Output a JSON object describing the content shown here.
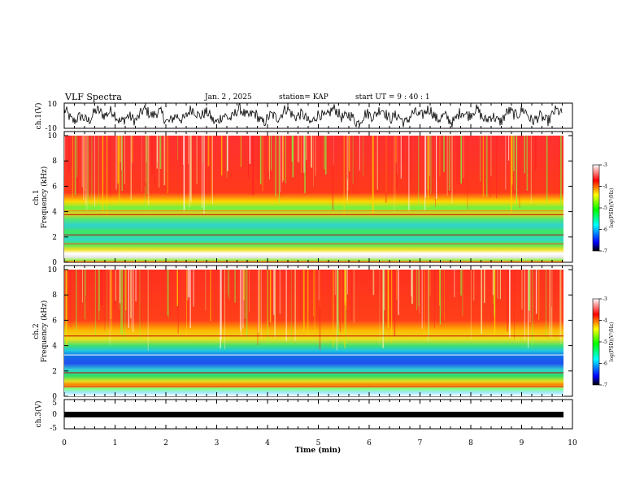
{
  "chart_data": {
    "type": "heatmap",
    "title": "VLF Spectra",
    "date": "Jan. 2 , 2025",
    "station": "station= KAP",
    "start_ut": "start UT =  9 : 40 : 1",
    "xlabel": "Time (min)",
    "x_ticks": [
      "0",
      "1",
      "2",
      "3",
      "4",
      "5",
      "6",
      "7",
      "8",
      "9",
      "10"
    ],
    "xlim": [
      0,
      10
    ],
    "data_end_min": 9.8,
    "panels": [
      {
        "id": "ch1-waveform",
        "ylabel": "ch.1(V)",
        "ylim": [
          -10,
          10
        ],
        "y_ticks": [
          "10",
          "-10"
        ]
      },
      {
        "id": "ch1-spectrogram",
        "ylabel_top": "ch.1",
        "ylabel": "Frequency (kHz)",
        "ylim": [
          0,
          10
        ],
        "y_ticks": [
          "0",
          "2",
          "4",
          "6",
          "8",
          "10"
        ],
        "profile_description": "red/high power above 5 kHz, green/yellow 2-5 kHz, cyan bands near 2.5-3.5 kHz, white gap near 0.5 kHz"
      },
      {
        "id": "ch2-spectrogram",
        "ylabel_top": "ch.2",
        "ylabel": "Frequency (kHz)",
        "ylim": [
          0,
          10
        ],
        "y_ticks": [
          "0",
          "2",
          "4",
          "6",
          "8",
          "10"
        ],
        "profile_description": "red/high power above 5 kHz, green 3.5-5 kHz, blue/cyan band 2-3.5 kHz, green 0.5-2 kHz"
      },
      {
        "id": "ch3-waveform",
        "ylabel": "ch.3(V)",
        "ylim": [
          -5,
          5
        ],
        "y_ticks": [
          "5",
          "0",
          "-5"
        ],
        "constant_level": 0
      }
    ],
    "colorbar": {
      "label": "log(PSD)(V²/Hz)",
      "range": [
        -7,
        -3
      ],
      "ticks": [
        "-3",
        "-4",
        "-5",
        "-6",
        "-7"
      ],
      "colormap": [
        "#000000",
        "#0000ff",
        "#00ffff",
        "#00ff00",
        "#ffff00",
        "#ff0000",
        "#ffffff"
      ]
    }
  }
}
